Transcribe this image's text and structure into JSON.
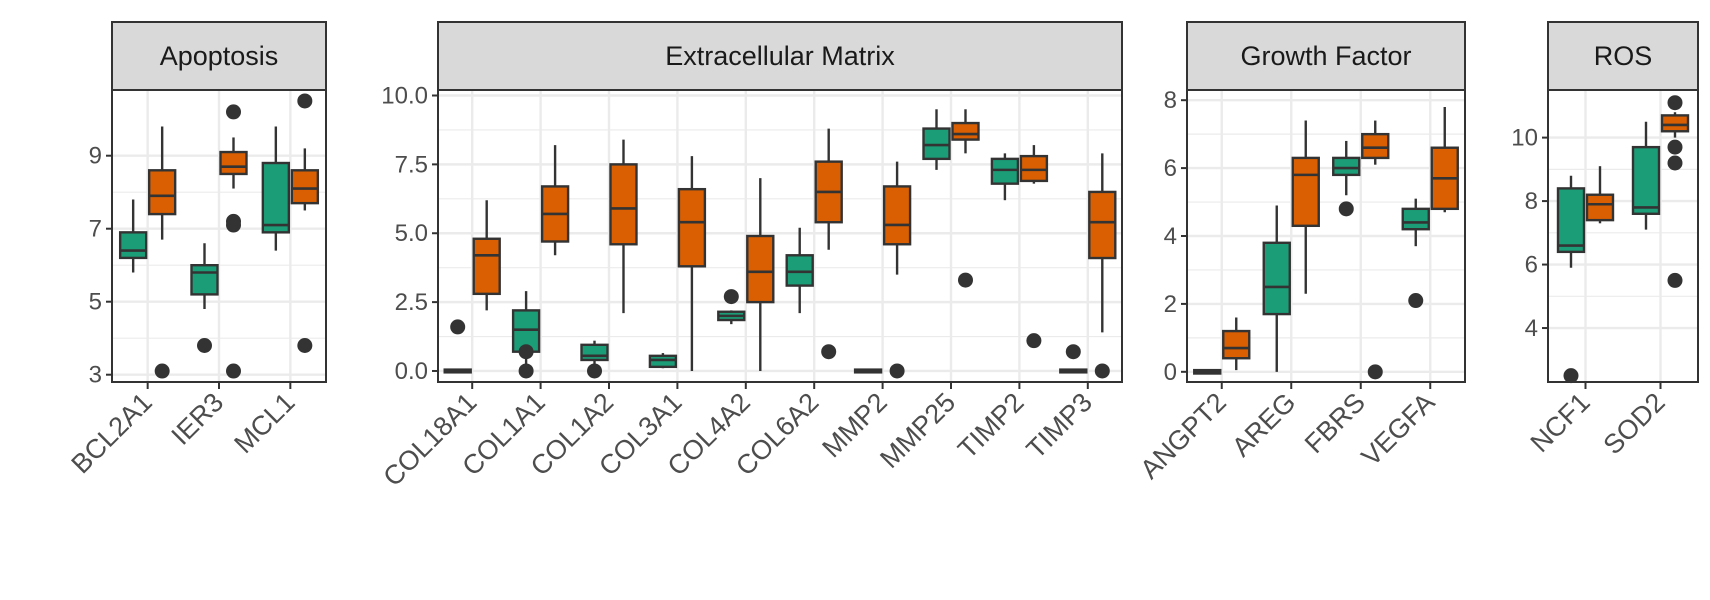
{
  "chart_data": {
    "type": "box",
    "facet_layout": "single row, free scales",
    "legend": "none",
    "grid": true,
    "colors": {
      "series_a": "#1b9e77",
      "series_b": "#d95f02",
      "outline": "#333333",
      "strip_fill": "#d9d9d9",
      "grid": "#ebebeb"
    },
    "facets": [
      {
        "title": "Apoptosis",
        "y_ticks": [
          "3",
          "5",
          "7",
          "9"
        ],
        "y_tick_values": [
          3,
          5,
          7,
          9
        ],
        "ylim": [
          2.8,
          10.8
        ],
        "categories": [
          "BCL2A1",
          "IER3",
          "MCL1"
        ],
        "boxes": [
          [
            {
              "series": "a",
              "min": 5.8,
              "q1": 6.2,
              "median": 6.4,
              "q3": 6.9,
              "max": 7.8,
              "outliers": []
            },
            {
              "series": "b",
              "min": 6.7,
              "q1": 7.4,
              "median": 7.9,
              "q3": 8.6,
              "max": 9.8,
              "outliers": [
                3.1
              ]
            }
          ],
          [
            {
              "series": "a",
              "min": 4.8,
              "q1": 5.2,
              "median": 5.8,
              "q3": 6.0,
              "max": 6.6,
              "outliers": [
                3.8
              ]
            },
            {
              "series": "b",
              "min": 8.1,
              "q1": 8.5,
              "median": 8.7,
              "q3": 9.1,
              "max": 9.5,
              "outliers": [
                10.2,
                7.2,
                7.1,
                3.1
              ]
            }
          ],
          [
            {
              "series": "a",
              "min": 6.4,
              "q1": 6.9,
              "median": 7.1,
              "q3": 8.8,
              "max": 9.8,
              "outliers": []
            },
            {
              "series": "b",
              "min": 7.5,
              "q1": 7.7,
              "median": 8.1,
              "q3": 8.6,
              "max": 9.2,
              "outliers": [
                10.5,
                3.8
              ]
            }
          ]
        ]
      },
      {
        "title": "Extracellular Matrix",
        "y_ticks": [
          "0.0",
          "2.5",
          "5.0",
          "7.5",
          "10.0"
        ],
        "y_tick_values": [
          0,
          2.5,
          5,
          7.5,
          10
        ],
        "ylim": [
          -0.4,
          10.2
        ],
        "categories": [
          "COL18A1",
          "COL1A1",
          "COL1A2",
          "COL3A1",
          "COL4A2",
          "COL6A2",
          "MMP2",
          "MMP25",
          "TIMP2",
          "TIMP3"
        ],
        "boxes": [
          [
            {
              "series": "a",
              "min": -0.05,
              "q1": -0.05,
              "median": 0.0,
              "q3": 0.05,
              "max": 0.05,
              "outliers": [
                1.6
              ]
            },
            {
              "series": "b",
              "min": 2.2,
              "q1": 2.8,
              "median": 4.2,
              "q3": 4.8,
              "max": 6.2,
              "outliers": []
            }
          ],
          [
            {
              "series": "a",
              "min": 0.1,
              "q1": 0.7,
              "median": 1.5,
              "q3": 2.2,
              "max": 2.9,
              "outliers": [
                0.7,
                0.0
              ]
            },
            {
              "series": "b",
              "min": 4.2,
              "q1": 4.7,
              "median": 5.7,
              "q3": 6.7,
              "max": 8.2,
              "outliers": []
            }
          ],
          [
            {
              "series": "a",
              "min": 0.1,
              "q1": 0.4,
              "median": 0.55,
              "q3": 0.95,
              "max": 1.1,
              "outliers": [
                0.0
              ]
            },
            {
              "series": "b",
              "min": 2.1,
              "q1": 4.6,
              "median": 5.9,
              "q3": 7.5,
              "max": 8.4,
              "outliers": []
            }
          ],
          [
            {
              "series": "a",
              "min": 0.1,
              "q1": 0.15,
              "median": 0.4,
              "q3": 0.55,
              "max": 0.65,
              "outliers": []
            },
            {
              "series": "b",
              "min": 0.0,
              "q1": 3.8,
              "median": 5.4,
              "q3": 6.6,
              "max": 7.8,
              "outliers": []
            }
          ],
          [
            {
              "series": "a",
              "min": 1.7,
              "q1": 1.85,
              "median": 2.0,
              "q3": 2.15,
              "max": 2.2,
              "outliers": [
                2.7
              ]
            },
            {
              "series": "b",
              "min": 0.0,
              "q1": 2.5,
              "median": 3.6,
              "q3": 4.9,
              "max": 7.0,
              "outliers": []
            }
          ],
          [
            {
              "series": "a",
              "min": 2.1,
              "q1": 3.1,
              "median": 3.6,
              "q3": 4.2,
              "max": 5.2,
              "outliers": []
            },
            {
              "series": "b",
              "min": 4.4,
              "q1": 5.4,
              "median": 6.5,
              "q3": 7.6,
              "max": 8.8,
              "outliers": [
                0.7
              ]
            }
          ],
          [
            {
              "series": "a",
              "min": -0.05,
              "q1": -0.05,
              "median": 0.0,
              "q3": 0.05,
              "max": 0.05,
              "outliers": []
            },
            {
              "series": "b",
              "min": 3.5,
              "q1": 4.6,
              "median": 5.3,
              "q3": 6.7,
              "max": 7.6,
              "outliers": [
                0.0
              ]
            }
          ],
          [
            {
              "series": "a",
              "min": 7.3,
              "q1": 7.7,
              "median": 8.2,
              "q3": 8.8,
              "max": 9.5,
              "outliers": []
            },
            {
              "series": "b",
              "min": 7.9,
              "q1": 8.4,
              "median": 8.6,
              "q3": 9.0,
              "max": 9.5,
              "outliers": [
                3.3
              ]
            }
          ],
          [
            {
              "series": "a",
              "min": 6.2,
              "q1": 6.8,
              "median": 7.3,
              "q3": 7.7,
              "max": 7.9,
              "outliers": []
            },
            {
              "series": "b",
              "min": 6.8,
              "q1": 6.9,
              "median": 7.3,
              "q3": 7.8,
              "max": 8.2,
              "outliers": [
                1.1
              ]
            }
          ],
          [
            {
              "series": "a",
              "min": -0.05,
              "q1": -0.05,
              "median": 0.0,
              "q3": 0.05,
              "max": 0.05,
              "outliers": [
                0.7
              ]
            },
            {
              "series": "b",
              "min": 1.4,
              "q1": 4.1,
              "median": 5.4,
              "q3": 6.5,
              "max": 7.9,
              "outliers": [
                0.0
              ]
            }
          ]
        ]
      },
      {
        "title": "Growth Factor",
        "y_ticks": [
          "0",
          "2",
          "4",
          "6",
          "8"
        ],
        "y_tick_values": [
          0,
          2,
          4,
          6,
          8
        ],
        "ylim": [
          -0.3,
          8.3
        ],
        "categories": [
          "ANGPT2",
          "AREG",
          "FBRS",
          "VEGFA"
        ],
        "boxes": [
          [
            {
              "series": "a",
              "min": -0.05,
              "q1": -0.05,
              "median": 0.0,
              "q3": 0.05,
              "max": 0.05,
              "outliers": []
            },
            {
              "series": "b",
              "min": 0.05,
              "q1": 0.4,
              "median": 0.7,
              "q3": 1.2,
              "max": 1.6,
              "outliers": []
            }
          ],
          [
            {
              "series": "a",
              "min": 0.0,
              "q1": 1.7,
              "median": 2.5,
              "q3": 3.8,
              "max": 4.9,
              "outliers": []
            },
            {
              "series": "b",
              "min": 2.3,
              "q1": 4.3,
              "median": 5.8,
              "q3": 6.3,
              "max": 7.4,
              "outliers": []
            }
          ],
          [
            {
              "series": "a",
              "min": 5.2,
              "q1": 5.8,
              "median": 6.0,
              "q3": 6.3,
              "max": 6.8,
              "outliers": [
                4.8
              ]
            },
            {
              "series": "b",
              "min": 6.1,
              "q1": 6.3,
              "median": 6.6,
              "q3": 7.0,
              "max": 7.4,
              "outliers": [
                0.0
              ]
            }
          ],
          [
            {
              "series": "a",
              "min": 3.7,
              "q1": 4.2,
              "median": 4.4,
              "q3": 4.8,
              "max": 5.1,
              "outliers": [
                2.1
              ]
            },
            {
              "series": "b",
              "min": 4.7,
              "q1": 4.8,
              "median": 5.7,
              "q3": 6.6,
              "max": 7.8,
              "outliers": []
            }
          ]
        ]
      },
      {
        "title": "ROS",
        "y_ticks": [
          "4",
          "6",
          "8",
          "10"
        ],
        "y_tick_values": [
          4,
          6,
          8,
          10
        ],
        "ylim": [
          2.3,
          11.5
        ],
        "categories": [
          "NCF1",
          "SOD2"
        ],
        "boxes": [
          [
            {
              "series": "a",
              "min": 5.9,
              "q1": 6.4,
              "median": 6.6,
              "q3": 8.4,
              "max": 8.8,
              "outliers": [
                2.5
              ]
            },
            {
              "series": "b",
              "min": 7.3,
              "q1": 7.4,
              "median": 7.9,
              "q3": 8.2,
              "max": 9.1,
              "outliers": []
            }
          ],
          [
            {
              "series": "a",
              "min": 7.1,
              "q1": 7.6,
              "median": 7.8,
              "q3": 9.7,
              "max": 10.5,
              "outliers": []
            },
            {
              "series": "b",
              "min": 10.0,
              "q1": 10.2,
              "median": 10.4,
              "q3": 10.7,
              "max": 10.8,
              "outliers": [
                11.1,
                9.7,
                9.2,
                5.5
              ]
            }
          ]
        ]
      }
    ]
  }
}
